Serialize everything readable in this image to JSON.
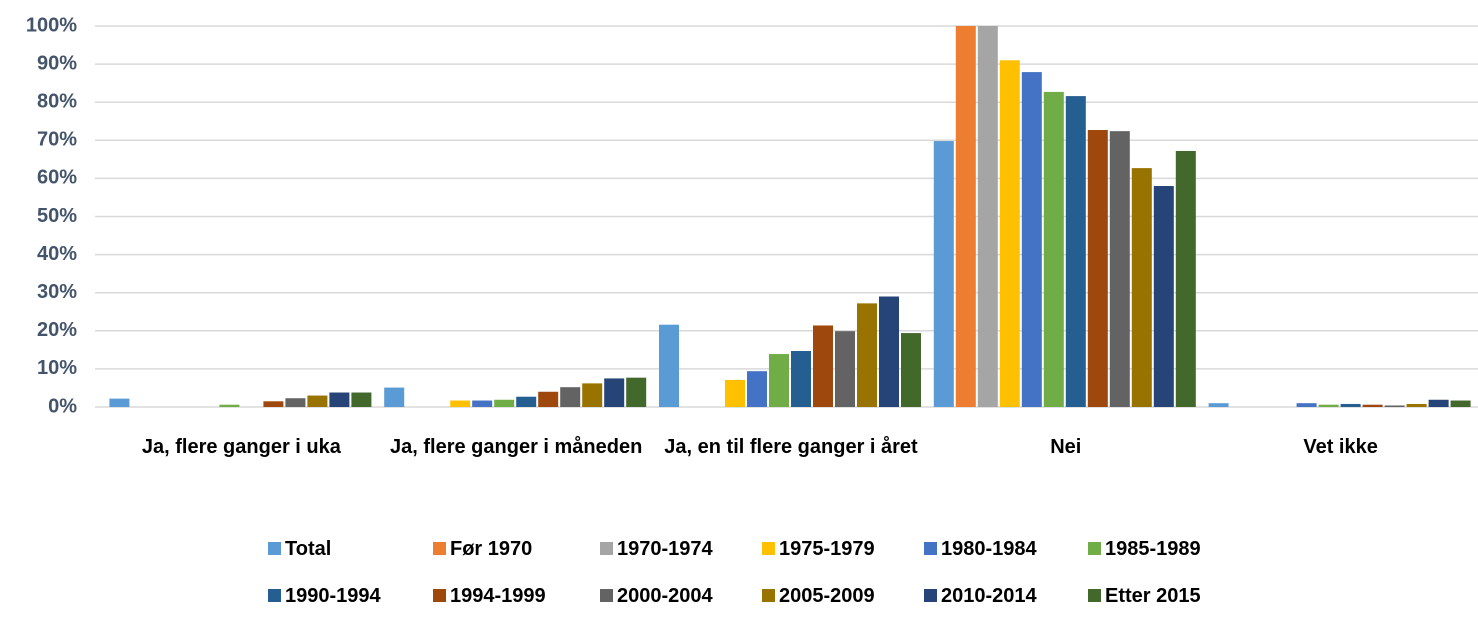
{
  "chart_data": {
    "type": "bar",
    "categories": [
      "Ja, flere ganger i uka",
      "Ja, flere ganger i måneden",
      "Ja, en til flere ganger i året",
      "Nei",
      "Vet ikke"
    ],
    "series": [
      {
        "name": "Total",
        "color": "#5b9bd5",
        "values": [
          2.2,
          5.1,
          21.6,
          69.8,
          1.0
        ]
      },
      {
        "name": "Før 1970",
        "color": "#ed7d31",
        "values": [
          0,
          0,
          0,
          100,
          0
        ]
      },
      {
        "name": "1970-1974",
        "color": "#a5a5a5",
        "values": [
          0,
          0,
          0,
          100,
          0
        ]
      },
      {
        "name": "1975-1979",
        "color": "#ffc000",
        "values": [
          0,
          1.7,
          7.1,
          91.0,
          0
        ]
      },
      {
        "name": "1980-1984",
        "color": "#4472c4",
        "values": [
          0,
          1.7,
          9.4,
          87.9,
          1.0
        ]
      },
      {
        "name": "1985-1989",
        "color": "#70ad47",
        "values": [
          0.6,
          1.9,
          13.9,
          82.7,
          0.6
        ]
      },
      {
        "name": "1990-1994",
        "color": "#255e91",
        "values": [
          0,
          2.7,
          14.7,
          81.6,
          0.8
        ]
      },
      {
        "name": "1994-1999",
        "color": "#9e480e",
        "values": [
          1.5,
          4.0,
          21.4,
          72.7,
          0.6
        ]
      },
      {
        "name": "2000-2004",
        "color": "#636363",
        "values": [
          2.3,
          5.2,
          19.9,
          72.4,
          0.4
        ]
      },
      {
        "name": "2005-2009",
        "color": "#997300",
        "values": [
          3.0,
          6.2,
          27.2,
          62.7,
          0.8
        ]
      },
      {
        "name": "2010-2014",
        "color": "#264478",
        "values": [
          3.8,
          7.5,
          29.0,
          58.0,
          1.9
        ]
      },
      {
        "name": "Etter 2015",
        "color": "#43682b",
        "values": [
          3.8,
          7.7,
          19.4,
          67.2,
          1.7
        ]
      }
    ],
    "ylim": [
      0,
      100
    ],
    "yticks": [
      {
        "value": 0,
        "label": "0%"
      },
      {
        "value": 10,
        "label": "10%"
      },
      {
        "value": 20,
        "label": "20%"
      },
      {
        "value": 30,
        "label": "30%"
      },
      {
        "value": 40,
        "label": "40%"
      },
      {
        "value": 50,
        "label": "50%"
      },
      {
        "value": 60,
        "label": "60%"
      },
      {
        "value": 70,
        "label": "70%"
      },
      {
        "value": 80,
        "label": "80%"
      },
      {
        "value": 90,
        "label": "90%"
      },
      {
        "value": 100,
        "label": "100%"
      }
    ],
    "grid": true,
    "legend": "bottom"
  }
}
